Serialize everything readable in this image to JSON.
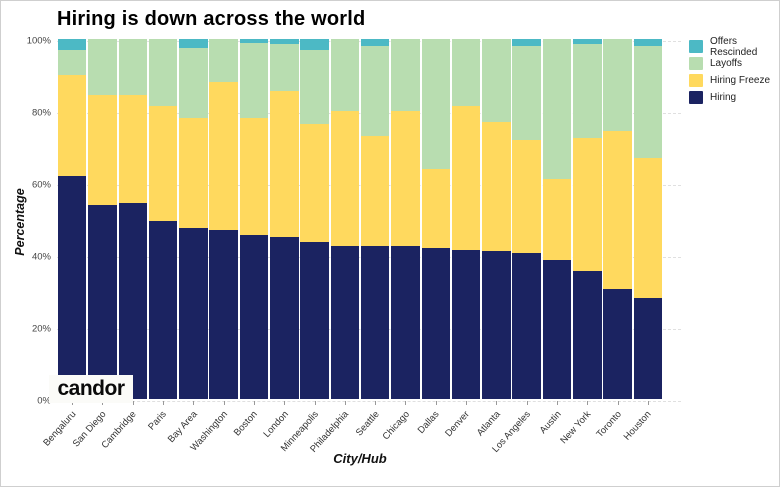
{
  "title": "Hiring is down across the world",
  "brand": {
    "logo_text": "candor"
  },
  "axes": {
    "y_title": "Percentage",
    "x_title": "City/Hub",
    "y_ticks": [
      "0%",
      "20%",
      "40%",
      "60%",
      "80%",
      "100%"
    ]
  },
  "legend": [
    {
      "label": "Offers Rescinded",
      "color": "#4cb9c5"
    },
    {
      "label": "Layoffs",
      "color": "#b8ddb0"
    },
    {
      "label": "Hiring Freeze",
      "color": "#ffd95e"
    },
    {
      "label": "Hiring",
      "color": "#1b2361"
    }
  ],
  "chart_data": {
    "type": "bar",
    "stacked": true,
    "title": "Hiring is down across the world",
    "xlabel": "City/Hub",
    "ylabel": "Percentage",
    "ylim": [
      0,
      100
    ],
    "y_tick_step": 20,
    "grid": true,
    "legend_position": "top-right",
    "categories": [
      "Bengaluru",
      "San Diego",
      "Cambridge",
      "Paris",
      "Bay Area",
      "Washington",
      "Boston",
      "London",
      "Minneapolis",
      "Philadelphia",
      "Seattle",
      "Chicago",
      "Dallas",
      "Denver",
      "Atlanta",
      "Los Angeles",
      "Austin",
      "New York",
      "Toronto",
      "Houston"
    ],
    "series": [
      {
        "name": "Hiring",
        "color": "#1b2361",
        "values": [
          62,
          54,
          54.5,
          49.5,
          47.5,
          47,
          45.5,
          45,
          43.5,
          42.5,
          42.5,
          42.5,
          42,
          41.5,
          41,
          40.5,
          38.5,
          35.5,
          30.5,
          28
        ]
      },
      {
        "name": "Hiring Freeze",
        "color": "#ffd95e",
        "values": [
          28,
          30.5,
          30,
          32,
          30.5,
          41,
          32.5,
          40.5,
          33,
          37.5,
          30.5,
          37.5,
          22,
          40,
          36,
          31.5,
          22.5,
          37,
          44,
          39
        ]
      },
      {
        "name": "Layoffs",
        "color": "#b8ddb0",
        "values": [
          7,
          15.5,
          15.5,
          18.5,
          19.5,
          12,
          21,
          13,
          20.5,
          20,
          25,
          20,
          36,
          18.5,
          23,
          26,
          39,
          26,
          25.5,
          31
        ]
      },
      {
        "name": "Offers Rescinded",
        "color": "#4cb9c5",
        "values": [
          3,
          0,
          0,
          0,
          2.5,
          0,
          1,
          1.5,
          3,
          0,
          2,
          0,
          0,
          0,
          0,
          2,
          0,
          1.5,
          0,
          2
        ]
      }
    ]
  }
}
